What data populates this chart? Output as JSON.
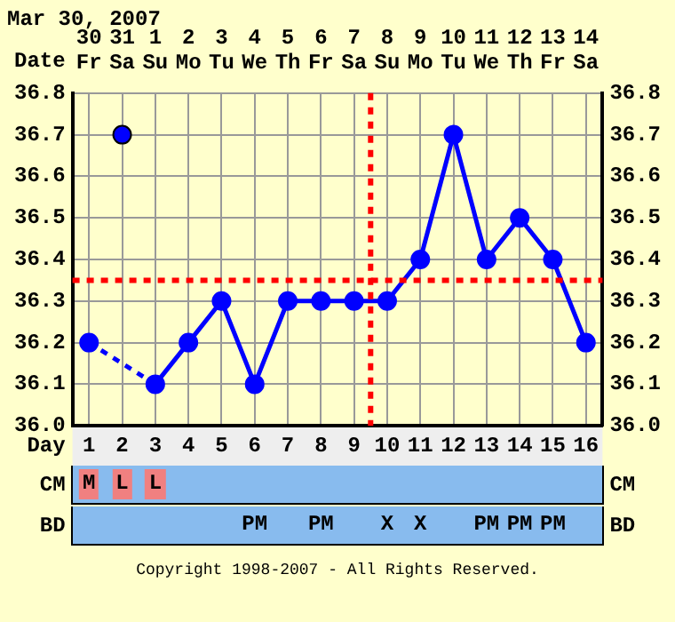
{
  "chart_data": [
    {
      "type": "line",
      "title": "Mar 30, 2007",
      "xlabel": "Day",
      "x": [
        1,
        2,
        3,
        4,
        5,
        6,
        7,
        8,
        9,
        10,
        11,
        12,
        13,
        14,
        15,
        16
      ],
      "series": [
        {
          "type": "line",
          "color": "#0000ff",
          "values": [
            36.2,
            null,
            36.1,
            36.2,
            36.3,
            36.1,
            36.3,
            36.3,
            36.3,
            36.3,
            36.4,
            36.7,
            36.4,
            36.5,
            36.4,
            36.2
          ]
        },
        {
          "type": "scatter",
          "color": "#0000ff",
          "values": [
            null,
            36.7,
            null,
            null,
            null,
            null,
            null,
            null,
            null,
            null,
            null,
            null,
            null,
            null,
            null,
            null
          ]
        }
      ],
      "xlim": [
        0.5,
        16.5
      ],
      "xticks": [
        1,
        2,
        3,
        4,
        5,
        6,
        7,
        8,
        9,
        10,
        11,
        12,
        13,
        14,
        15,
        16
      ],
      "ylim": [
        36.0,
        36.8
      ],
      "yticks": [
        {
          "value": 36.0,
          "label": "36.0"
        },
        36.1,
        36.2,
        36.3,
        36.4,
        36.5,
        36.6,
        36.7,
        36.8
      ],
      "y2lim": [
        36.0,
        36.8
      ],
      "y2ticks": [
        {
          "value": 36.0,
          "label": "36.0"
        },
        36.1,
        36.2,
        36.3,
        36.4,
        36.5,
        36.6,
        36.7,
        36.8
      ],
      "ref_lines": [
        {
          "axis": "x",
          "value": 9.5,
          "color": "#ff0000",
          "line_style": "dotted"
        },
        {
          "axis": "y",
          "value": 36.35,
          "color": "#ff0000",
          "line_style": "dotted"
        }
      ],
      "grid": true,
      "legend": false,
      "marker": "circle",
      "line_style": "solid",
      "annotations": [
        "Date",
        "30 Fr",
        "31 Sa",
        "1 Su",
        "2 Mo",
        "3 Tu",
        "4 We",
        "5 Th",
        "6 Fr",
        "7 Sa",
        "8 Su",
        "9 Mo",
        "10 Tu",
        "11 We",
        "12 Th",
        "13 Fr",
        "14 Sa"
      ]
    },
    {
      "type": "other",
      "title": "CM",
      "categories": [
        "M",
        "L",
        "L",
        null,
        null,
        null,
        null,
        null,
        null,
        null,
        null,
        null,
        null,
        null,
        null,
        null
      ]
    },
    {
      "type": "other",
      "title": "BD",
      "categories": [
        null,
        null,
        null,
        null,
        null,
        "PM",
        null,
        "PM",
        null,
        "X",
        "X",
        null,
        "PM",
        "PM",
        "PM",
        null
      ],
      "annotations": [
        "Copyright 1998-2007 - All Rights Reserved."
      ]
    }
  ]
}
